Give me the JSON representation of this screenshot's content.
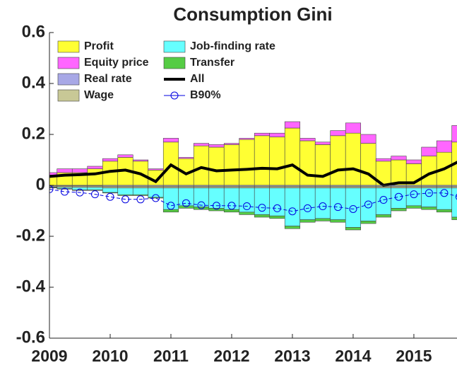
{
  "chart_data": {
    "type": "bar",
    "title": "Consumption Gini",
    "stacked": true,
    "legend": "upper left",
    "x": [
      2009,
      2009.25,
      2009.5,
      2009.75,
      2010,
      2010.25,
      2010.5,
      2010.75,
      2011,
      2011.25,
      2011.5,
      2011.75,
      2012,
      2012.25,
      2012.5,
      2012.75,
      2013,
      2013.25,
      2013.5,
      2013.75,
      2014,
      2014.25,
      2014.5,
      2014.75,
      2015,
      2015.25,
      2015.5,
      2015.75
    ],
    "xlim": [
      2009,
      2015.71
    ],
    "xticks": [
      2009,
      2010,
      2011,
      2012,
      2013,
      2014,
      2015
    ],
    "ylim": [
      -0.6,
      0.6
    ],
    "yticks": [
      -0.6,
      -0.4,
      -0.2,
      0,
      0.2,
      0.4,
      0.6
    ],
    "series": [
      {
        "name": "Profit",
        "type": "bar",
        "color": "#ffff33",
        "values": [
          0.04,
          0.05,
          0.05,
          0.065,
          0.095,
          0.11,
          0.095,
          0.06,
          0.17,
          0.105,
          0.155,
          0.15,
          0.16,
          0.18,
          0.195,
          0.19,
          0.225,
          0.175,
          0.16,
          0.195,
          0.205,
          0.165,
          0.095,
          0.1,
          0.085,
          0.115,
          0.13,
          0.17
        ]
      },
      {
        "name": "Equity price",
        "type": "bar",
        "color": "#ff66ff",
        "values": [
          0.01,
          0.015,
          0.015,
          0.01,
          0.01,
          0.01,
          0.005,
          0.005,
          0.015,
          0.005,
          0.01,
          0.01,
          0.005,
          0.005,
          0.01,
          0.015,
          0.025,
          0.01,
          0.01,
          0.02,
          0.04,
          0.035,
          0.01,
          0.015,
          0.015,
          0.035,
          0.045,
          0.065
        ]
      },
      {
        "name": "Real rate",
        "type": "bar",
        "color": "#a8a8e6",
        "values": [
          -0.003,
          -0.003,
          -0.003,
          -0.003,
          -0.004,
          -0.004,
          -0.004,
          -0.004,
          -0.004,
          -0.004,
          -0.004,
          -0.004,
          -0.004,
          -0.004,
          -0.004,
          -0.004,
          -0.004,
          -0.004,
          -0.004,
          -0.004,
          -0.004,
          -0.004,
          -0.004,
          -0.004,
          -0.004,
          -0.004,
          -0.004,
          -0.004
        ]
      },
      {
        "name": "Wage",
        "type": "bar",
        "color": "#c8c896",
        "values": [
          -0.004,
          -0.005,
          -0.005,
          -0.005,
          -0.006,
          -0.006,
          -0.006,
          -0.006,
          -0.006,
          -0.006,
          -0.006,
          -0.006,
          -0.006,
          -0.006,
          -0.006,
          -0.006,
          -0.006,
          -0.006,
          -0.006,
          -0.006,
          -0.006,
          -0.006,
          -0.006,
          -0.006,
          -0.006,
          -0.006,
          -0.006,
          -0.006
        ]
      },
      {
        "name": "Job-finding rate",
        "type": "bar",
        "color": "#66ffff",
        "values": [
          -0.002,
          -0.005,
          -0.01,
          -0.01,
          -0.018,
          -0.027,
          -0.027,
          -0.037,
          -0.085,
          -0.07,
          -0.075,
          -0.08,
          -0.085,
          -0.095,
          -0.105,
          -0.11,
          -0.15,
          -0.125,
          -0.12,
          -0.125,
          -0.155,
          -0.13,
          -0.105,
          -0.08,
          -0.07,
          -0.075,
          -0.085,
          -0.115
        ]
      },
      {
        "name": "Transfer",
        "type": "bar",
        "color": "#55cc44",
        "values": [
          -0.001,
          -0.002,
          -0.002,
          -0.002,
          -0.002,
          -0.003,
          -0.003,
          -0.003,
          -0.01,
          -0.01,
          -0.01,
          -0.01,
          -0.01,
          -0.01,
          -0.01,
          -0.01,
          -0.01,
          -0.01,
          -0.01,
          -0.01,
          -0.01,
          -0.01,
          -0.01,
          -0.01,
          -0.01,
          -0.01,
          -0.01,
          -0.01
        ]
      },
      {
        "name": "All",
        "type": "line",
        "color": "#000000",
        "values": [
          0.035,
          0.04,
          0.042,
          0.045,
          0.055,
          0.06,
          0.045,
          0.015,
          0.08,
          0.045,
          0.07,
          0.057,
          0.06,
          0.063,
          0.067,
          0.065,
          0.08,
          0.04,
          0.035,
          0.06,
          0.065,
          0.045,
          0.0,
          0.01,
          0.01,
          0.045,
          0.065,
          0.095
        ]
      },
      {
        "name": "B90%",
        "type": "line",
        "marker": "circle",
        "color": "#0000e0",
        "values": [
          -0.015,
          -0.025,
          -0.028,
          -0.035,
          -0.045,
          -0.055,
          -0.055,
          -0.05,
          -0.08,
          -0.07,
          -0.078,
          -0.08,
          -0.08,
          -0.082,
          -0.088,
          -0.09,
          -0.102,
          -0.09,
          -0.082,
          -0.085,
          -0.093,
          -0.075,
          -0.057,
          -0.045,
          -0.035,
          -0.03,
          -0.03,
          -0.045
        ]
      }
    ]
  }
}
